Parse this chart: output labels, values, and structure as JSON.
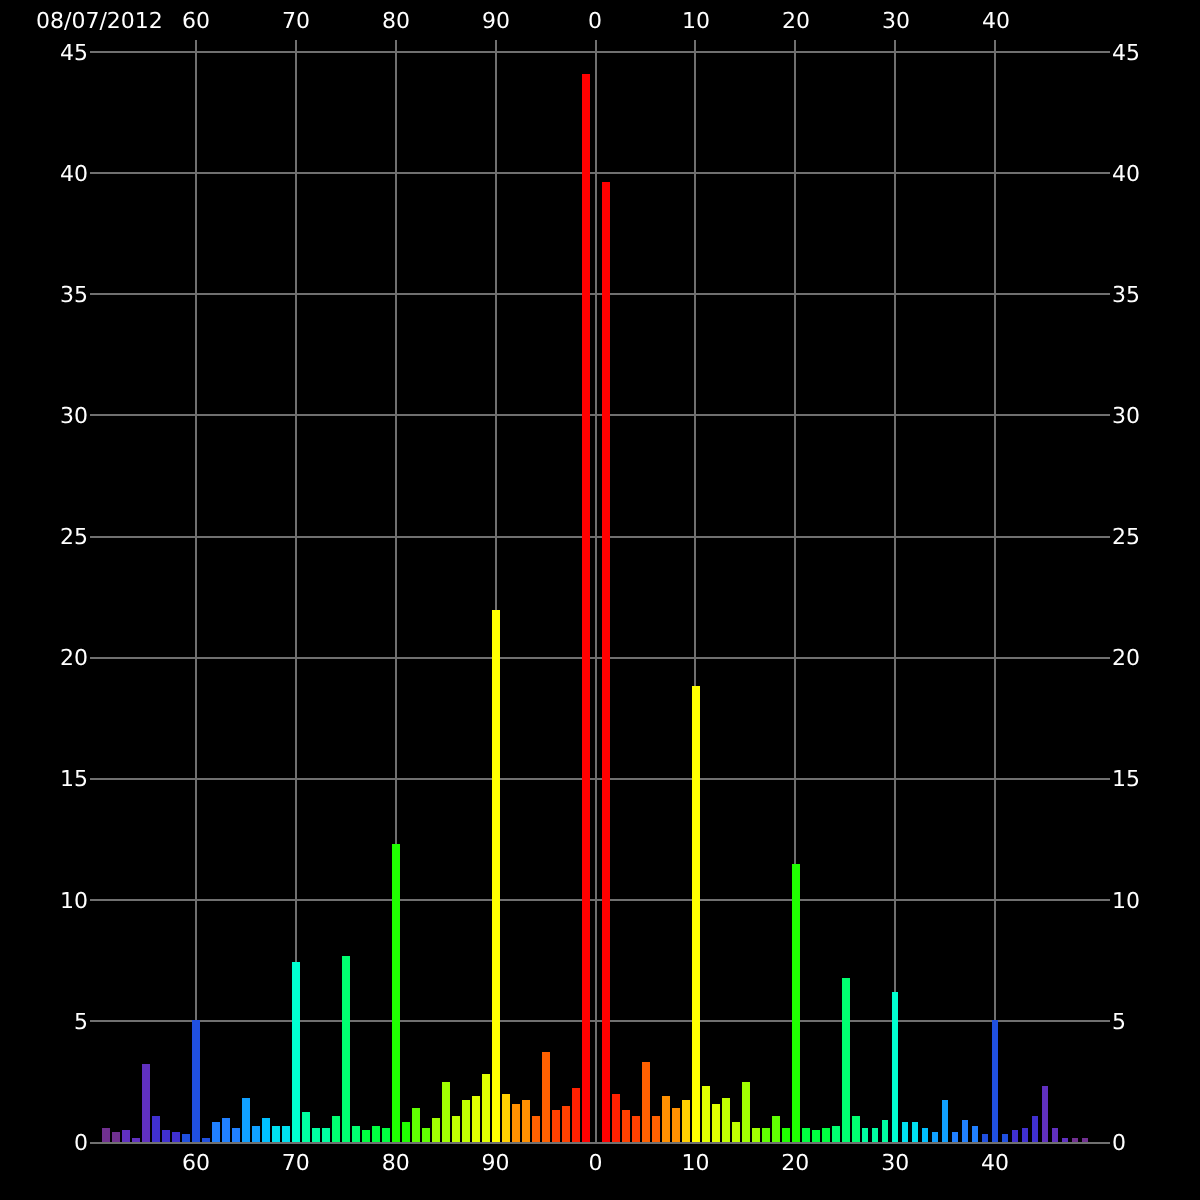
{
  "chart_data": {
    "type": "bar",
    "annotations": [
      "08/07/2012"
    ],
    "categories": [
      null,
      null,
      null,
      null,
      null,
      null,
      null,
      null,
      null,
      "60",
      null,
      null,
      null,
      null,
      null,
      null,
      null,
      null,
      null,
      "70",
      null,
      null,
      null,
      null,
      null,
      null,
      null,
      null,
      null,
      "80",
      null,
      null,
      null,
      null,
      null,
      null,
      null,
      null,
      null,
      "90",
      null,
      null,
      null,
      null,
      null,
      null,
      null,
      null,
      null,
      "0",
      null,
      null,
      null,
      null,
      null,
      null,
      null,
      null,
      null,
      "10",
      null,
      null,
      null,
      null,
      null,
      null,
      null,
      null,
      null,
      "20",
      null,
      null,
      null,
      null,
      null,
      null,
      null,
      null,
      null,
      "30",
      null,
      null,
      null,
      null,
      null,
      null,
      null,
      null,
      null,
      "40",
      null,
      null,
      null,
      null,
      null,
      null,
      null,
      null,
      null
    ],
    "values": [
      0.6,
      0.4,
      0.5,
      0.2,
      3.2,
      1.1,
      0.5,
      0.4,
      0.3,
      5.0,
      0.2,
      0.8,
      1.0,
      0.6,
      1.8,
      0.7,
      1.0,
      0.7,
      0.7,
      7.4,
      1.2,
      0.6,
      0.6,
      1.1,
      7.7,
      0.7,
      0.5,
      0.7,
      0.6,
      12.3,
      0.8,
      1.4,
      0.6,
      1.0,
      2.5,
      1.1,
      1.7,
      1.9,
      2.8,
      22.0,
      2.0,
      1.6,
      1.7,
      1.1,
      3.7,
      1.3,
      1.5,
      2.2,
      44.1,
      0,
      39.6,
      2.0,
      1.3,
      1.1,
      3.3,
      1.1,
      1.9,
      1.4,
      1.7,
      18.8,
      2.3,
      1.6,
      1.8,
      0.8,
      2.5,
      0.6,
      0.6,
      1.1,
      0.6,
      11.5,
      0.6,
      0.5,
      0.6,
      0.7,
      6.8,
      1.1,
      0.6,
      0.6,
      0.9,
      6.2,
      0.8,
      0.8,
      0.6,
      0.4,
      1.7,
      0.4,
      0.9,
      0.7,
      0.3,
      5.0,
      0.3,
      0.5,
      0.6,
      1.1,
      2.3,
      0.6,
      0.2,
      0.2,
      0.2
    ],
    "colors": [
      "#703090",
      "#703090",
      "#6030c0",
      "#6030c0",
      "#6030c0",
      "#4030d0",
      "#4030d0",
      "#4030d0",
      "#2050e0",
      "#2050e0",
      "#2050e0",
      "#2080ff",
      "#2080ff",
      "#2080ff",
      "#10a0ff",
      "#10a0ff",
      "#00c0ff",
      "#00e0f0",
      "#00e0f0",
      "#00ffd0",
      "#00ffa0",
      "#00ffa0",
      "#00ffa0",
      "#00ff70",
      "#00ff70",
      "#00ff70",
      "#00ff40",
      "#00ff40",
      "#00ff40",
      "#20ff00",
      "#20ff00",
      "#60ff00",
      "#60ff00",
      "#a0ff00",
      "#a0ff00",
      "#c0ff00",
      "#c0ff00",
      "#e0ff00",
      "#e0ff00",
      "#ffff00",
      "#ffd000",
      "#ff9000",
      "#ff9000",
      "#ff6000",
      "#ff6000",
      "#ff4000",
      "#ff4000",
      "#ff2000",
      "#ff0000",
      "#ff0000",
      "#ff0000",
      "#ff2000",
      "#ff4000",
      "#ff4000",
      "#ff6000",
      "#ff6000",
      "#ff9000",
      "#ff9000",
      "#ffd000",
      "#ffff00",
      "#e0ff00",
      "#e0ff00",
      "#c0ff00",
      "#c0ff00",
      "#a0ff00",
      "#a0ff00",
      "#60ff00",
      "#60ff00",
      "#20ff00",
      "#20ff00",
      "#00ff40",
      "#00ff40",
      "#00ff40",
      "#00ff70",
      "#00ff70",
      "#00ff70",
      "#00ffa0",
      "#00ffa0",
      "#00ffa0",
      "#00ffd0",
      "#00e0f0",
      "#00e0f0",
      "#00c0ff",
      "#10a0ff",
      "#10a0ff",
      "#2080ff",
      "#2080ff",
      "#2080ff",
      "#2050e0",
      "#2050e0",
      "#2050e0",
      "#4030d0",
      "#4030d0",
      "#4030d0",
      "#6030c0",
      "#6030c0",
      "#6030c0",
      "#703090",
      "#703090"
    ],
    "ylim": [
      0,
      45.5
    ],
    "yticks": [
      0,
      5,
      10,
      15,
      20,
      25,
      30,
      35,
      40,
      45
    ],
    "y2lim": [
      0,
      45.5
    ],
    "y2ticks": [
      0,
      5,
      10,
      15,
      20,
      25,
      30,
      35,
      40,
      45
    ],
    "grid": true
  }
}
